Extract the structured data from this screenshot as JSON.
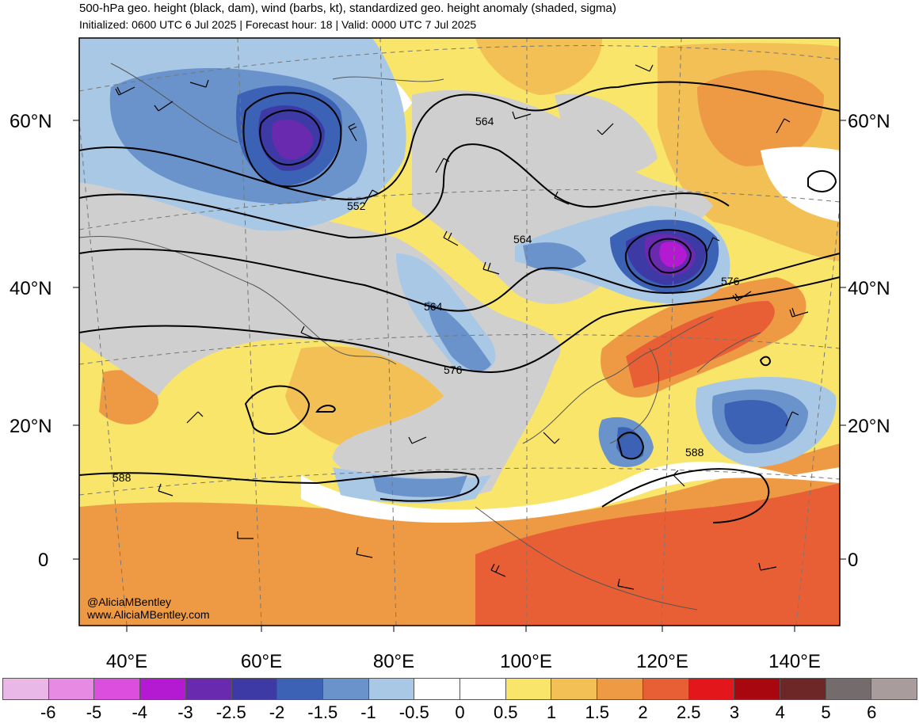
{
  "header": {
    "title": "500-hPa geo. height (black, dam), wind (barbs, kt), standardized geo. height anomaly (shaded, sigma)",
    "subtitle": "Initialized: 0600 UTC 6 Jul 2025 | Forecast hour: 18 | Valid: 0000 UTC 7 Jul 2025"
  },
  "map": {
    "lat_labels": [
      "60°N",
      "40°N",
      "20°N",
      "0"
    ],
    "lon_labels": [
      "40°E",
      "60°E",
      "80°E",
      "100°E",
      "120°E",
      "140°E"
    ],
    "contour_labels": [
      "564",
      "552",
      "564",
      "564",
      "576",
      "576",
      "588",
      "588"
    ],
    "credits": [
      "@AliciaMBentley",
      "www.AliciaMBentley.com"
    ]
  },
  "colorbar": {
    "colors": [
      "#e9b8e6",
      "#e78ae3",
      "#dc4fde",
      "#b51ad3",
      "#6a2ab0",
      "#3d3aa6",
      "#3b62b4",
      "#6a93cc",
      "#a8c8e6",
      "#ffffff",
      "#ffffff",
      "#f9e56a",
      "#f2c055",
      "#ee9a45",
      "#e95f35",
      "#e3171b",
      "#a8070f",
      "#6e2727",
      "#746c6c",
      "#a89c9c"
    ],
    "ticks": [
      "-6",
      "-5",
      "-4",
      "-3",
      "-2.5",
      "-2",
      "-1.5",
      "-1",
      "-0.5",
      "0",
      "0.5",
      "1",
      "1.5",
      "2",
      "2.5",
      "3",
      "4",
      "5",
      "6"
    ]
  }
}
